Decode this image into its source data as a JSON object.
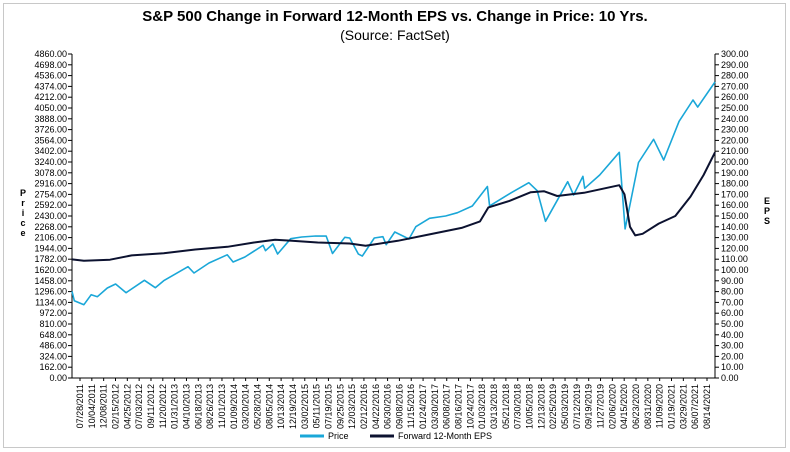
{
  "chart_data": {
    "type": "line",
    "title": "S&P 500 Change in Forward 12-Month EPS vs. Change in Price: 10 Yrs.",
    "subtitle": "(Source: FactSet)",
    "ylabel_left": "Price",
    "ylabel_right": "EPS",
    "ylim_left": [
      0,
      4860
    ],
    "ylim_right": [
      0,
      300
    ],
    "y_left_ticks": [
      "0.00",
      "162.00",
      "324.00",
      "486.00",
      "648.00",
      "810.00",
      "972.00",
      "1134.00",
      "1296.00",
      "1458.00",
      "1620.00",
      "1782.00",
      "1944.00",
      "2106.00",
      "2268.00",
      "2430.00",
      "2592.00",
      "2754.00",
      "2916.00",
      "3078.00",
      "3240.00",
      "3402.00",
      "3564.00",
      "3726.00",
      "3888.00",
      "4050.00",
      "4212.00",
      "4374.00",
      "4536.00",
      "4698.00",
      "4860.00"
    ],
    "y_right_ticks": [
      "0.00",
      "10.00",
      "20.00",
      "30.00",
      "40.00",
      "50.00",
      "60.00",
      "70.00",
      "80.00",
      "90.00",
      "100.00",
      "110.00",
      "120.00",
      "130.00",
      "140.00",
      "150.00",
      "160.00",
      "170.00",
      "180.00",
      "190.00",
      "200.00",
      "210.00",
      "220.00",
      "230.00",
      "240.00",
      "250.00",
      "260.00",
      "270.00",
      "280.00",
      "290.00",
      "300.00"
    ],
    "x_ticks": [
      "07/28/2011",
      "10/04/2011",
      "12/08/2011",
      "02/15/2012",
      "04/25/2012",
      "07/03/2012",
      "09/11/2012",
      "11/20/2012",
      "01/31/2013",
      "04/10/2013",
      "06/18/2013",
      "08/26/2013",
      "11/01/2013",
      "01/09/2014",
      "03/20/2014",
      "05/28/2014",
      "08/05/2014",
      "10/13/2014",
      "12/19/2014",
      "03/02/2015",
      "05/11/2015",
      "07/19/2015",
      "09/25/2015",
      "12/03/2015",
      "02/12/2016",
      "04/22/2016",
      "06/30/2016",
      "09/08/2016",
      "11/15/2016",
      "01/24/2017",
      "03/30/2017",
      "06/08/2017",
      "08/16/2017",
      "10/24/2017",
      "01/03/2018",
      "03/13/2018",
      "05/21/2018",
      "07/30/2018",
      "10/05/2018",
      "12/13/2018",
      "02/25/2019",
      "05/03/2019",
      "07/12/2019",
      "09/19/2019",
      "11/27/2019",
      "02/06/2020",
      "04/15/2020",
      "06/23/2020",
      "08/31/2020",
      "11/09/2020",
      "01/19/2021",
      "03/29/2021",
      "06/07/2021",
      "08/14/2021"
    ],
    "x_range": [
      "2011-07-28",
      "2021-08-19"
    ],
    "series": [
      {
        "name": "Price",
        "color": "#1aa7d8",
        "axis": "left",
        "points": [
          [
            "2011-07-28",
            1300
          ],
          [
            "2011-08-10",
            1160
          ],
          [
            "2011-10-04",
            1099
          ],
          [
            "2011-11-15",
            1250
          ],
          [
            "2011-12-20",
            1220
          ],
          [
            "2012-02-15",
            1350
          ],
          [
            "2012-04-02",
            1410
          ],
          [
            "2012-06-01",
            1280
          ],
          [
            "2012-09-14",
            1465
          ],
          [
            "2012-11-15",
            1355
          ],
          [
            "2013-01-02",
            1460
          ],
          [
            "2013-05-21",
            1670
          ],
          [
            "2013-06-24",
            1575
          ],
          [
            "2013-09-18",
            1725
          ],
          [
            "2013-12-31",
            1848
          ],
          [
            "2014-02-03",
            1740
          ],
          [
            "2014-04-11",
            1815
          ],
          [
            "2014-07-24",
            1990
          ],
          [
            "2014-08-07",
            1910
          ],
          [
            "2014-09-18",
            2010
          ],
          [
            "2014-10-15",
            1860
          ],
          [
            "2014-12-29",
            2090
          ],
          [
            "2015-03-02",
            2115
          ],
          [
            "2015-05-21",
            2130
          ],
          [
            "2015-07-20",
            2128
          ],
          [
            "2015-08-25",
            1867
          ],
          [
            "2015-11-03",
            2110
          ],
          [
            "2015-12-01",
            2100
          ],
          [
            "2016-01-20",
            1859
          ],
          [
            "2016-02-11",
            1829
          ],
          [
            "2016-04-20",
            2100
          ],
          [
            "2016-06-08",
            2120
          ],
          [
            "2016-06-27",
            2000
          ],
          [
            "2016-08-15",
            2190
          ],
          [
            "2016-11-04",
            2085
          ],
          [
            "2016-12-13",
            2270
          ],
          [
            "2017-03-01",
            2395
          ],
          [
            "2017-06-01",
            2430
          ],
          [
            "2017-08-08",
            2480
          ],
          [
            "2017-11-01",
            2580
          ],
          [
            "2018-01-26",
            2873
          ],
          [
            "2018-02-08",
            2581
          ],
          [
            "2018-06-12",
            2780
          ],
          [
            "2018-09-20",
            2930
          ],
          [
            "2018-11-07",
            2810
          ],
          [
            "2018-12-24",
            2351
          ],
          [
            "2019-04-30",
            2945
          ],
          [
            "2019-06-03",
            2745
          ],
          [
            "2019-07-26",
            3025
          ],
          [
            "2019-08-05",
            2845
          ],
          [
            "2019-10-30",
            3045
          ],
          [
            "2020-02-19",
            3386
          ],
          [
            "2020-03-23",
            2237
          ],
          [
            "2020-06-08",
            3232
          ],
          [
            "2020-09-02",
            3580
          ],
          [
            "2020-10-30",
            3270
          ],
          [
            "2021-01-26",
            3850
          ],
          [
            "2021-04-15",
            4170
          ],
          [
            "2021-05-12",
            4063
          ],
          [
            "2021-08-19",
            4440
          ]
        ]
      },
      {
        "name": "Forward 12-Month EPS",
        "color": "#0c1230",
        "axis": "right",
        "points": [
          [
            "2011-07-28",
            109.8
          ],
          [
            "2011-10-04",
            108.5
          ],
          [
            "2012-03-01",
            109.5
          ],
          [
            "2012-07-03",
            113.5
          ],
          [
            "2013-01-02",
            115.5
          ],
          [
            "2013-07-01",
            119
          ],
          [
            "2014-01-02",
            121.5
          ],
          [
            "2014-06-02",
            125.5
          ],
          [
            "2014-10-01",
            128
          ],
          [
            "2015-01-05",
            127
          ],
          [
            "2015-06-01",
            125.5
          ],
          [
            "2015-12-01",
            124.5
          ],
          [
            "2016-03-01",
            122.5
          ],
          [
            "2016-09-01",
            127
          ],
          [
            "2017-03-01",
            133
          ],
          [
            "2017-09-01",
            139
          ],
          [
            "2017-12-15",
            145
          ],
          [
            "2018-02-01",
            158
          ],
          [
            "2018-06-01",
            164
          ],
          [
            "2018-10-01",
            172
          ],
          [
            "2018-12-15",
            173
          ],
          [
            "2019-03-01",
            168.5
          ],
          [
            "2019-08-01",
            171.5
          ],
          [
            "2020-02-19",
            178.5
          ],
          [
            "2020-03-20",
            170
          ],
          [
            "2020-04-20",
            140
          ],
          [
            "2020-05-20",
            132
          ],
          [
            "2020-07-01",
            133.5
          ],
          [
            "2020-10-01",
            143
          ],
          [
            "2021-01-04",
            150
          ],
          [
            "2021-04-01",
            168
          ],
          [
            "2021-06-15",
            188
          ],
          [
            "2021-08-19",
            209
          ]
        ]
      }
    ],
    "legend": [
      "Price",
      "Forward 12-Month EPS"
    ],
    "legend_position": "bottom-center",
    "grid": false
  }
}
